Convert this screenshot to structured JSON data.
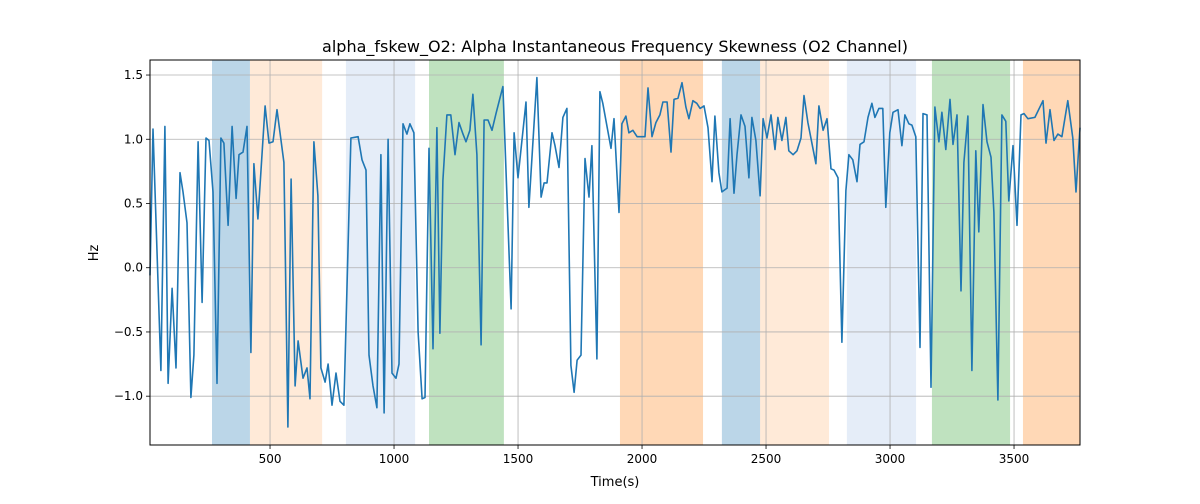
{
  "chart_data": {
    "type": "line",
    "title": "alpha_fskew_O2: Alpha Instantaneous Frequency Skewness (O2 Channel)",
    "xlabel": "Time(s)",
    "ylabel": "Hz",
    "xlim": [
      16,
      3766
    ],
    "ylim": [
      -1.38,
      1.617
    ],
    "grid": true,
    "xticks": [
      500,
      1000,
      1500,
      2000,
      2500,
      3000,
      3500
    ],
    "yticks": [
      -1.0,
      -0.5,
      0.0,
      0.5,
      1.0,
      1.5
    ],
    "xtick_labels": [
      "500",
      "1000",
      "1500",
      "2000",
      "2500",
      "3000",
      "3500"
    ],
    "ytick_labels": [
      "−1.0",
      "−0.5",
      "0.0",
      "0.5",
      "1.0",
      "1.5"
    ],
    "line_color": "#1f77b4",
    "bands": [
      {
        "start": 266,
        "end": 419,
        "color": "#1f77b4",
        "opacity": 0.3
      },
      {
        "start": 419,
        "end": 710,
        "color": "#ff7f0e",
        "opacity": 0.16
      },
      {
        "start": 806,
        "end": 1085,
        "color": "#aec7e8",
        "opacity": 0.32
      },
      {
        "start": 1141,
        "end": 1443,
        "color": "#2ca02c",
        "opacity": 0.3
      },
      {
        "start": 1911,
        "end": 2246,
        "color": "#ff7f0e",
        "opacity": 0.3
      },
      {
        "start": 2322,
        "end": 2476,
        "color": "#1f77b4",
        "opacity": 0.3
      },
      {
        "start": 2476,
        "end": 2754,
        "color": "#ff7f0e",
        "opacity": 0.16
      },
      {
        "start": 2826,
        "end": 3105,
        "color": "#aec7e8",
        "opacity": 0.32
      },
      {
        "start": 3169,
        "end": 3484,
        "color": "#2ca02c",
        "opacity": 0.3
      },
      {
        "start": 3536,
        "end": 3766,
        "color": "#ff7f0e",
        "opacity": 0.3
      }
    ],
    "series": [
      {
        "name": "alpha_fskew_O2",
        "x": [
          16,
          28,
          60,
          76,
          89,
          105,
          121,
          137,
          149,
          165,
          181,
          193,
          210,
          226,
          242,
          254,
          270,
          286,
          302,
          314,
          331,
          347,
          363,
          375,
          391,
          407,
          423,
          435,
          451,
          480,
          496,
          512,
          528,
          556,
          572,
          585,
          601,
          613,
          633,
          649,
          661,
          677,
          693,
          705,
          722,
          734,
          750,
          766,
          782,
          798,
          826,
          855,
          871,
          887,
          899,
          915,
          931,
          947,
          960,
          976,
          992,
          1008,
          1020,
          1036,
          1052,
          1064,
          1080,
          1097,
          1113,
          1125,
          1141,
          1157,
          1173,
          1185,
          1197,
          1213,
          1229,
          1246,
          1262,
          1278,
          1290,
          1306,
          1318,
          1334,
          1351,
          1363,
          1379,
          1395,
          1411,
          1439,
          1472,
          1484,
          1500,
          1532,
          1544,
          1576,
          1593,
          1605,
          1617,
          1637,
          1649,
          1665,
          1681,
          1697,
          1713,
          1726,
          1738,
          1754,
          1770,
          1786,
          1798,
          1818,
          1830,
          1842,
          1875,
          1887,
          1907,
          1919,
          1935,
          1947,
          1963,
          1980,
          2012,
          2024,
          2040,
          2056,
          2072,
          2084,
          2101,
          2117,
          2129,
          2145,
          2161,
          2177,
          2189,
          2205,
          2221,
          2234,
          2250,
          2266,
          2282,
          2294,
          2310,
          2322,
          2343,
          2355,
          2371,
          2383,
          2399,
          2415,
          2431,
          2443,
          2459,
          2476,
          2488,
          2504,
          2520,
          2536,
          2548,
          2564,
          2580,
          2592,
          2609,
          2625,
          2641,
          2653,
          2669,
          2701,
          2713,
          2730,
          2746,
          2762,
          2774,
          2790,
          2806,
          2822,
          2834,
          2850,
          2867,
          2879,
          2895,
          2911,
          2927,
          2939,
          2955,
          2971,
          2983,
          2999,
          3012,
          3032,
          3048,
          3060,
          3076,
          3088,
          3104,
          3121,
          3133,
          3149,
          3165,
          3181,
          3197,
          3209,
          3225,
          3242,
          3254,
          3270,
          3286,
          3298,
          3314,
          3330,
          3346,
          3358,
          3375,
          3391,
          3407,
          3419,
          3435,
          3451,
          3467,
          3479,
          3496,
          3512,
          3528,
          3540,
          3556,
          3584,
          3617,
          3629,
          3645,
          3661,
          3677,
          3693,
          3717,
          3737,
          3750,
          3766
        ],
        "y": [
          -0.06,
          1.08,
          -0.8,
          1.1,
          -0.9,
          -0.16,
          -0.78,
          0.74,
          0.59,
          0.35,
          -1.01,
          -0.68,
          0.98,
          -0.27,
          1.01,
          0.99,
          0.59,
          -0.9,
          1.01,
          0.97,
          0.33,
          1.1,
          0.54,
          0.88,
          0.9,
          1.1,
          -0.66,
          0.81,
          0.38,
          1.26,
          0.97,
          0.98,
          1.23,
          0.82,
          -1.24,
          0.69,
          -0.92,
          -0.57,
          -0.86,
          -0.78,
          -1.02,
          0.98,
          0.56,
          -0.78,
          -0.89,
          -0.75,
          -1.07,
          -0.82,
          -1.04,
          -1.07,
          1.01,
          1.02,
          0.84,
          0.76,
          -0.68,
          -0.92,
          -1.09,
          0.88,
          -1.13,
          1.0,
          -0.82,
          -0.86,
          -0.75,
          1.12,
          1.04,
          1.12,
          1.05,
          -0.5,
          -1.02,
          -1.01,
          0.93,
          -0.63,
          1.09,
          -0.51,
          0.68,
          1.19,
          1.19,
          0.88,
          1.13,
          1.04,
          0.98,
          1.07,
          1.35,
          0.88,
          -0.6,
          1.15,
          1.15,
          1.07,
          1.2,
          1.41,
          -0.32,
          1.05,
          0.7,
          1.29,
          0.47,
          1.48,
          0.55,
          0.66,
          0.66,
          1.05,
          0.95,
          0.78,
          1.17,
          1.24,
          -0.76,
          -0.97,
          -0.72,
          -0.68,
          0.85,
          0.55,
          0.95,
          -0.71,
          1.37,
          1.28,
          0.93,
          1.16,
          0.43,
          1.12,
          1.18,
          1.05,
          1.07,
          1.02,
          1.02,
          1.4,
          1.02,
          1.13,
          1.19,
          1.29,
          1.29,
          0.9,
          1.31,
          1.32,
          1.44,
          1.25,
          1.16,
          1.3,
          1.28,
          1.24,
          1.26,
          1.09,
          0.67,
          1.18,
          0.74,
          0.59,
          0.62,
          1.16,
          0.58,
          0.88,
          1.19,
          1.1,
          0.7,
          1.17,
          0.99,
          0.56,
          1.16,
          1.01,
          1.19,
          0.92,
          1.17,
          0.99,
          1.17,
          0.91,
          0.88,
          0.91,
          1.01,
          1.34,
          1.13,
          0.81,
          1.26,
          1.07,
          1.16,
          0.77,
          0.76,
          0.7,
          -0.58,
          0.6,
          0.88,
          0.84,
          0.67,
          0.96,
          0.98,
          1.17,
          1.28,
          1.17,
          1.24,
          1.24,
          0.47,
          1.05,
          1.21,
          1.23,
          0.95,
          1.19,
          1.12,
          1.11,
          1.02,
          -0.62,
          1.2,
          1.19,
          -0.93,
          1.25,
          0.98,
          1.21,
          0.92,
          1.31,
          0.96,
          1.19,
          -0.18,
          0.82,
          1.18,
          -0.8,
          0.91,
          0.28,
          1.27,
          0.98,
          0.86,
          0.43,
          -1.03,
          1.19,
          1.14,
          0.52,
          0.95,
          0.33,
          1.19,
          1.2,
          1.16,
          1.17,
          1.3,
          0.97,
          1.23,
          0.99,
          1.04,
          1.02,
          1.3,
          1.01,
          0.59,
          1.09
        ]
      }
    ]
  }
}
